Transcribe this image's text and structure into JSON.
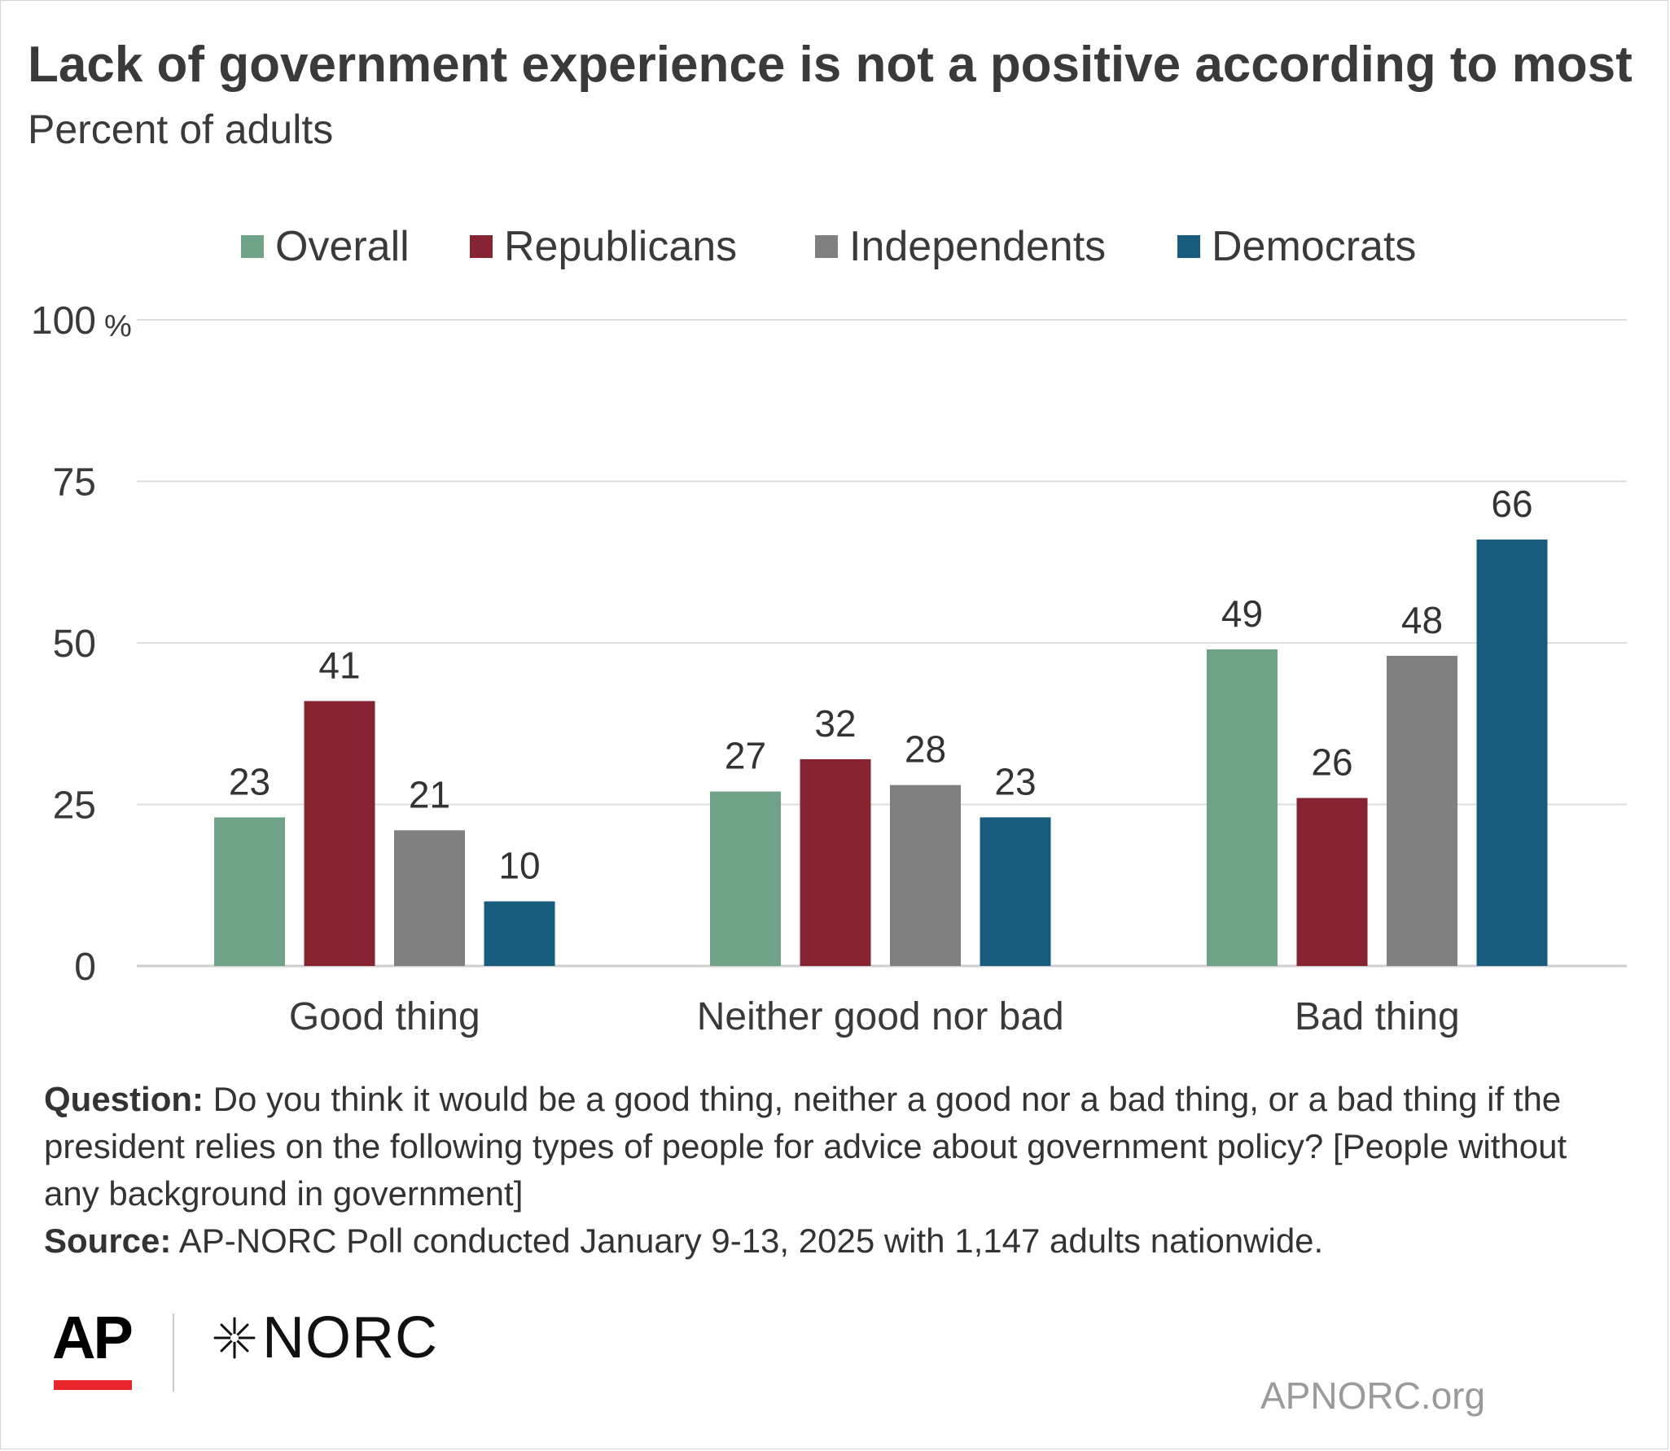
{
  "title": "Lack of government experience is not a positive according to most",
  "subtitle": "Percent of adults",
  "colors": {
    "overall": "#6ea387",
    "republicans": "#862431",
    "independents": "#808080",
    "democrats": "#175c7c",
    "grid": "#dcdcdc",
    "text": "#333333"
  },
  "legend": [
    {
      "label": "Overall",
      "color": "#6ea387"
    },
    {
      "label": "Republicans",
      "color": "#862431"
    },
    {
      "label": "Independents",
      "color": "#808080"
    },
    {
      "label": "Democrats",
      "color": "#175c7c"
    }
  ],
  "chart_data": {
    "type": "bar",
    "title": "Lack of government experience is not a positive according to most",
    "subtitle": "Percent of adults",
    "categories": [
      "Good thing",
      "Neither good nor bad",
      "Bad thing"
    ],
    "series": [
      {
        "name": "Overall",
        "color": "#6ea387",
        "values": [
          23,
          27,
          49
        ]
      },
      {
        "name": "Republicans",
        "color": "#862431",
        "values": [
          41,
          32,
          26
        ]
      },
      {
        "name": "Independents",
        "color": "#808080",
        "values": [
          21,
          28,
          48
        ]
      },
      {
        "name": "Democrats",
        "color": "#175c7c",
        "values": [
          10,
          23,
          66
        ]
      }
    ],
    "yticks": [
      "0",
      "25",
      "50",
      "75",
      "100"
    ],
    "ytick_values": [
      0,
      25,
      50,
      75,
      100
    ],
    "y_unit_label": "%",
    "ylim": [
      0,
      100
    ],
    "xlabel": "",
    "ylabel": "",
    "grid": true,
    "legend_position": "top-center",
    "data_labels": true
  },
  "footer": {
    "question_label": "Question:",
    "question_text": " Do you think it would be a good thing, neither a good nor a bad thing, or a bad thing if the president relies on the following types of people for advice about government policy? [People without any background in government]",
    "source_label": "Source:",
    "source_text": " AP-NORC Poll conducted January 9-13, 2025 with 1,147 adults nationwide."
  },
  "logos": {
    "ap": "AP",
    "norc": "NORC"
  },
  "site": "APNORC.org"
}
